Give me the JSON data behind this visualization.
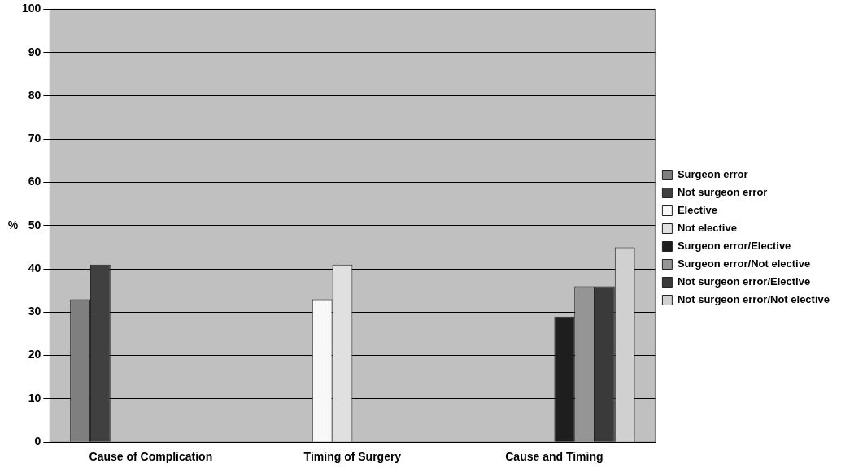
{
  "chart_data": {
    "type": "bar",
    "ylabel": "%",
    "categories": [
      "Cause of Complication",
      "Timing of Surgery",
      "Cause and Timing"
    ],
    "series": [
      {
        "name": "Surgeon error",
        "color": "#7f7f7f",
        "values": [
          33,
          null,
          null
        ]
      },
      {
        "name": "Not surgeon error",
        "color": "#404040",
        "values": [
          41,
          null,
          null
        ]
      },
      {
        "name": "Elective",
        "color": "#f8f8f8",
        "values": [
          null,
          33,
          null
        ]
      },
      {
        "name": "Not elective",
        "color": "#e0e0e0",
        "values": [
          null,
          41,
          null
        ]
      },
      {
        "name": "Surgeon error/Elective",
        "color": "#1e1e1e",
        "values": [
          null,
          null,
          29
        ]
      },
      {
        "name": "Surgeon error/Not elective",
        "color": "#959595",
        "values": [
          null,
          null,
          36
        ]
      },
      {
        "name": "Not surgeon error/Elective",
        "color": "#3a3a3a",
        "values": [
          null,
          null,
          36
        ]
      },
      {
        "name": "Not surgeon error/Not elective",
        "color": "#d0d0d0",
        "values": [
          null,
          null,
          45
        ]
      }
    ],
    "ylim": [
      0,
      100
    ],
    "yticks": [
      0,
      10,
      20,
      30,
      40,
      50,
      60,
      70,
      80,
      90,
      100
    ],
    "grid": "y",
    "legend": "right"
  }
}
